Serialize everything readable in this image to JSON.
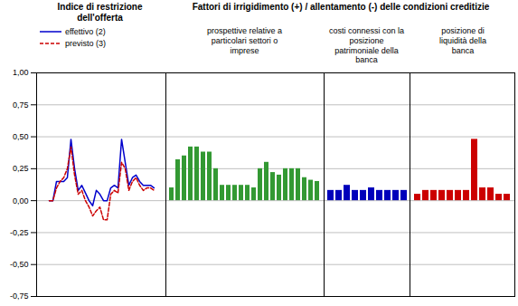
{
  "chart_data": [
    {
      "type": "line",
      "title": "Indice di restrizione\ndell'offerta",
      "categories": [
        null,
        null,
        null,
        null,
        null,
        null,
        null,
        null,
        null,
        null,
        null,
        null,
        null,
        null,
        null,
        null,
        null,
        null,
        null,
        null,
        null,
        null,
        null,
        null,
        null,
        null,
        null,
        null,
        null,
        null
      ],
      "series": [
        {
          "name": "effettivo (2)",
          "color": "#0000cc",
          "line_style": "solid",
          "values": [
            0.0,
            0.0,
            0.15,
            0.15,
            0.15,
            0.18,
            0.48,
            0.25,
            0.08,
            0.12,
            0.06,
            0.0,
            -0.04,
            0.08,
            0.05,
            0.0,
            0.0,
            0.1,
            0.12,
            0.1,
            0.48,
            0.3,
            0.12,
            0.18,
            0.2,
            0.15,
            0.12,
            0.12,
            0.12,
            0.1
          ]
        },
        {
          "name": "previsto (3)",
          "color": "#cc0000",
          "line_style": "dashed",
          "values": [
            0.0,
            0.0,
            0.1,
            0.15,
            0.18,
            0.25,
            0.42,
            0.2,
            0.05,
            0.08,
            0.0,
            -0.05,
            -0.12,
            -0.08,
            -0.05,
            -0.15,
            -0.15,
            0.05,
            0.08,
            0.06,
            0.3,
            0.25,
            0.08,
            0.15,
            0.18,
            0.12,
            0.08,
            0.1,
            0.1,
            0.08
          ]
        }
      ],
      "ylim": [
        -0.75,
        1.0
      ],
      "yticks": [
        {
          "value": -0.75,
          "label": "-0,75"
        },
        {
          "value": -0.5,
          "label": "-0,50"
        },
        {
          "value": -0.25,
          "label": "-0,25"
        },
        {
          "value": 0.0,
          "label": "0,00"
        },
        {
          "value": 0.25,
          "label": "0,25"
        },
        {
          "value": 0.5,
          "label": "0,50"
        },
        {
          "value": 0.75,
          "label": "0,75"
        },
        {
          "value": 1.0,
          "label": "1,00"
        }
      ],
      "grid": true,
      "legend": "upper left",
      "tick_labels": "y"
    },
    {
      "type": "bar",
      "title": "Fattori di irrigidimento (+) / allentamento (-) delle condizioni creditizie",
      "subtitle": "prospettive relative a\nparticolari settori o\nimprese",
      "categories": [
        null,
        null,
        null,
        null,
        null,
        null,
        null,
        null,
        null,
        null,
        null,
        null,
        null,
        null,
        null,
        null,
        null,
        null,
        null,
        null,
        null,
        null,
        null,
        null
      ],
      "values": [
        0.1,
        0.32,
        0.35,
        0.42,
        0.42,
        0.38,
        0.38,
        0.25,
        0.12,
        0.12,
        0.12,
        0.12,
        0.12,
        0.1,
        0.25,
        0.3,
        0.22,
        0.2,
        0.25,
        0.25,
        0.25,
        0.18,
        0.16,
        0.15
      ],
      "color": "#339933",
      "ylim": [
        -0.75,
        1.0
      ],
      "yticks": [
        {
          "value": -0.75,
          "label": "-0,75"
        },
        {
          "value": -0.5,
          "label": "-0,50"
        },
        {
          "value": -0.25,
          "label": "-0,25"
        },
        {
          "value": 0.0,
          "label": "0,00"
        },
        {
          "value": 0.25,
          "label": "0,25"
        },
        {
          "value": 0.5,
          "label": "0,50"
        },
        {
          "value": 0.75,
          "label": "0,75"
        },
        {
          "value": 1.0,
          "label": "1,00"
        }
      ],
      "grid": true,
      "tick_labels": false
    },
    {
      "type": "bar",
      "subtitle": "costi connessi con la\nposizione\npatrimoniale della\nbanca",
      "categories": [
        null,
        null,
        null,
        null,
        null,
        null,
        null,
        null,
        null,
        null
      ],
      "values": [
        0.08,
        0.08,
        0.12,
        0.08,
        0.08,
        0.1,
        0.08,
        0.08,
        0.08,
        0.08
      ],
      "color": "#0000bb",
      "ylim": [
        -0.75,
        1.0
      ],
      "yticks": [
        {
          "value": -0.75,
          "label": "-0,75"
        },
        {
          "value": -0.5,
          "label": "-0,50"
        },
        {
          "value": -0.25,
          "label": "-0,25"
        },
        {
          "value": 0.0,
          "label": "0,00"
        },
        {
          "value": 0.25,
          "label": "0,25"
        },
        {
          "value": 0.5,
          "label": "0,50"
        },
        {
          "value": 0.75,
          "label": "0,75"
        },
        {
          "value": 1.0,
          "label": "1,00"
        }
      ],
      "grid": true,
      "tick_labels": false
    },
    {
      "type": "bar",
      "subtitle": "posizione di\nliquidità della\nbanca",
      "categories": [
        null,
        null,
        null,
        null,
        null,
        null,
        null,
        null,
        null,
        null,
        null,
        null
      ],
      "values": [
        0.05,
        0.08,
        0.08,
        0.08,
        0.08,
        0.08,
        0.08,
        0.48,
        0.1,
        0.1,
        0.05,
        0.05
      ],
      "color": "#cc0000",
      "ylim": [
        -0.75,
        1.0
      ],
      "yticks": [
        {
          "value": -0.75,
          "label": "-0,75"
        },
        {
          "value": -0.5,
          "label": "-0,50"
        },
        {
          "value": -0.25,
          "label": "-0,25"
        },
        {
          "value": 0.0,
          "label": "0,00"
        },
        {
          "value": 0.25,
          "label": "0,25"
        },
        {
          "value": 0.5,
          "label": "0,50"
        },
        {
          "value": 0.75,
          "label": "0,75"
        },
        {
          "value": 1.0,
          "label": "1,00"
        }
      ],
      "grid": true,
      "tick_labels": false
    }
  ]
}
